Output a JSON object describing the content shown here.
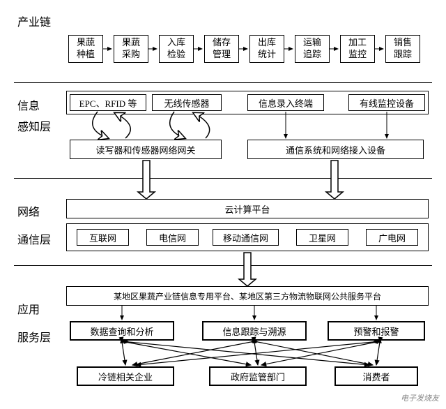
{
  "labels": {
    "chain": "产业链",
    "info": "信息",
    "sense": "感知层",
    "network": "网络",
    "comm": "通信层",
    "app": "应用",
    "service": "服务层"
  },
  "chain_boxes": [
    "果蔬\n种植",
    "果蔬\n采购",
    "入库\n检验",
    "储存\n管理",
    "出库\n统计",
    "运输\n追踪",
    "加工\n监控",
    "销售\n跟踪"
  ],
  "sense_top": [
    "EPC、RFID 等",
    "无线传感器",
    "信息录入终端",
    "有线监控设备"
  ],
  "sense_bottom": [
    "读写器和传感器网络网关",
    "通信系统和网络接入设备"
  ],
  "network_top": "云计算平台",
  "network_boxes": [
    "互联网",
    "电信网",
    "移动通信网",
    "卫星网",
    "广电网"
  ],
  "app_top": "某地区果蔬产业链信息专用平台、某地区第三方物流物联网公共服务平台",
  "app_mid": [
    "数据查询和分析",
    "信息跟踪与溯源",
    "预警和报警"
  ],
  "app_bottom": [
    "冷链相关企业",
    "政府监管部门",
    "消费者"
  ],
  "watermark": "电子发烧友",
  "style": {
    "box_border": "#000000",
    "bg": "#ffffff",
    "font_size_label": 16,
    "font_size_box": 13,
    "chain_box_w": 50,
    "chain_box_h": 40,
    "chain_gap": 65,
    "hr_positions": [
      118,
      255,
      380,
      570
    ]
  }
}
